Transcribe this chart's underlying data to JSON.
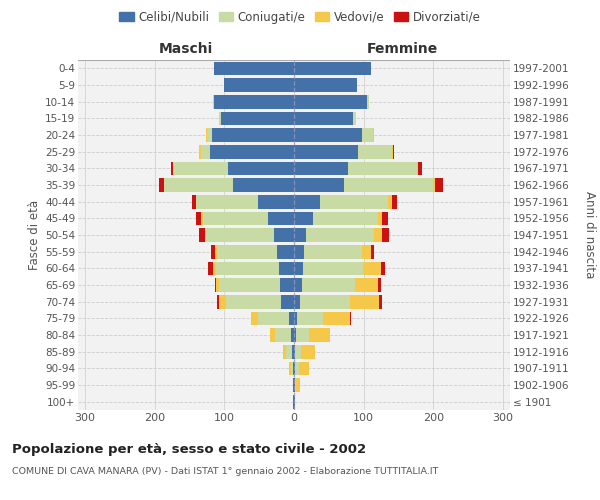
{
  "age_groups": [
    "100+",
    "95-99",
    "90-94",
    "85-89",
    "80-84",
    "75-79",
    "70-74",
    "65-69",
    "60-64",
    "55-59",
    "50-54",
    "45-49",
    "40-44",
    "35-39",
    "30-34",
    "25-29",
    "20-24",
    "15-19",
    "10-14",
    "5-9",
    "0-4"
  ],
  "birth_years": [
    "≤ 1901",
    "1902-1906",
    "1907-1911",
    "1912-1916",
    "1917-1921",
    "1922-1926",
    "1927-1931",
    "1932-1936",
    "1937-1941",
    "1942-1946",
    "1947-1951",
    "1952-1956",
    "1957-1961",
    "1962-1966",
    "1967-1971",
    "1972-1976",
    "1977-1981",
    "1982-1986",
    "1987-1991",
    "1992-1996",
    "1997-2001"
  ],
  "males": {
    "celibi": [
      1,
      1,
      2,
      3,
      5,
      7,
      18,
      20,
      22,
      25,
      28,
      38,
      52,
      88,
      95,
      120,
      118,
      105,
      115,
      100,
      115
    ],
    "coniugati": [
      0,
      0,
      3,
      8,
      22,
      45,
      80,
      88,
      90,
      85,
      98,
      93,
      88,
      98,
      78,
      14,
      7,
      2,
      1,
      0,
      0
    ],
    "vedovi": [
      0,
      0,
      2,
      5,
      8,
      10,
      10,
      4,
      4,
      4,
      2,
      2,
      1,
      0,
      0,
      2,
      1,
      0,
      0,
      0,
      0
    ],
    "divorziati": [
      0,
      0,
      0,
      0,
      0,
      0,
      2,
      2,
      8,
      5,
      9,
      8,
      5,
      8,
      3,
      0,
      0,
      0,
      0,
      0,
      0
    ]
  },
  "females": {
    "nubili": [
      1,
      1,
      2,
      2,
      3,
      4,
      8,
      12,
      13,
      15,
      17,
      27,
      37,
      72,
      78,
      92,
      98,
      85,
      105,
      90,
      110
    ],
    "coniugate": [
      0,
      2,
      5,
      8,
      18,
      38,
      72,
      76,
      86,
      82,
      98,
      93,
      98,
      128,
      98,
      48,
      16,
      4,
      2,
      0,
      0
    ],
    "vedove": [
      1,
      5,
      14,
      20,
      30,
      38,
      42,
      32,
      26,
      13,
      11,
      7,
      5,
      2,
      2,
      2,
      1,
      0,
      0,
      0,
      0
    ],
    "divorziate": [
      0,
      0,
      0,
      0,
      0,
      2,
      5,
      5,
      5,
      5,
      10,
      8,
      8,
      12,
      5,
      1,
      0,
      0,
      0,
      0,
      0
    ]
  },
  "colors": {
    "celibi_nubili": "#4472a8",
    "coniugati_e": "#c8dba4",
    "vedovi_e": "#f5c84a",
    "divorziati_e": "#cc1111"
  },
  "xlim": 310,
  "title": "Popolazione per età, sesso e stato civile - 2002",
  "subtitle": "COMUNE DI CAVA MANARA (PV) - Dati ISTAT 1° gennaio 2002 - Elaborazione TUTTITALIA.IT",
  "ylabel_left": "Fasce di età",
  "ylabel_right": "Anni di nascita",
  "header_left": "Maschi",
  "header_right": "Femmine",
  "bg_color": "#f2f2f2",
  "grid_color": "#cccccc"
}
